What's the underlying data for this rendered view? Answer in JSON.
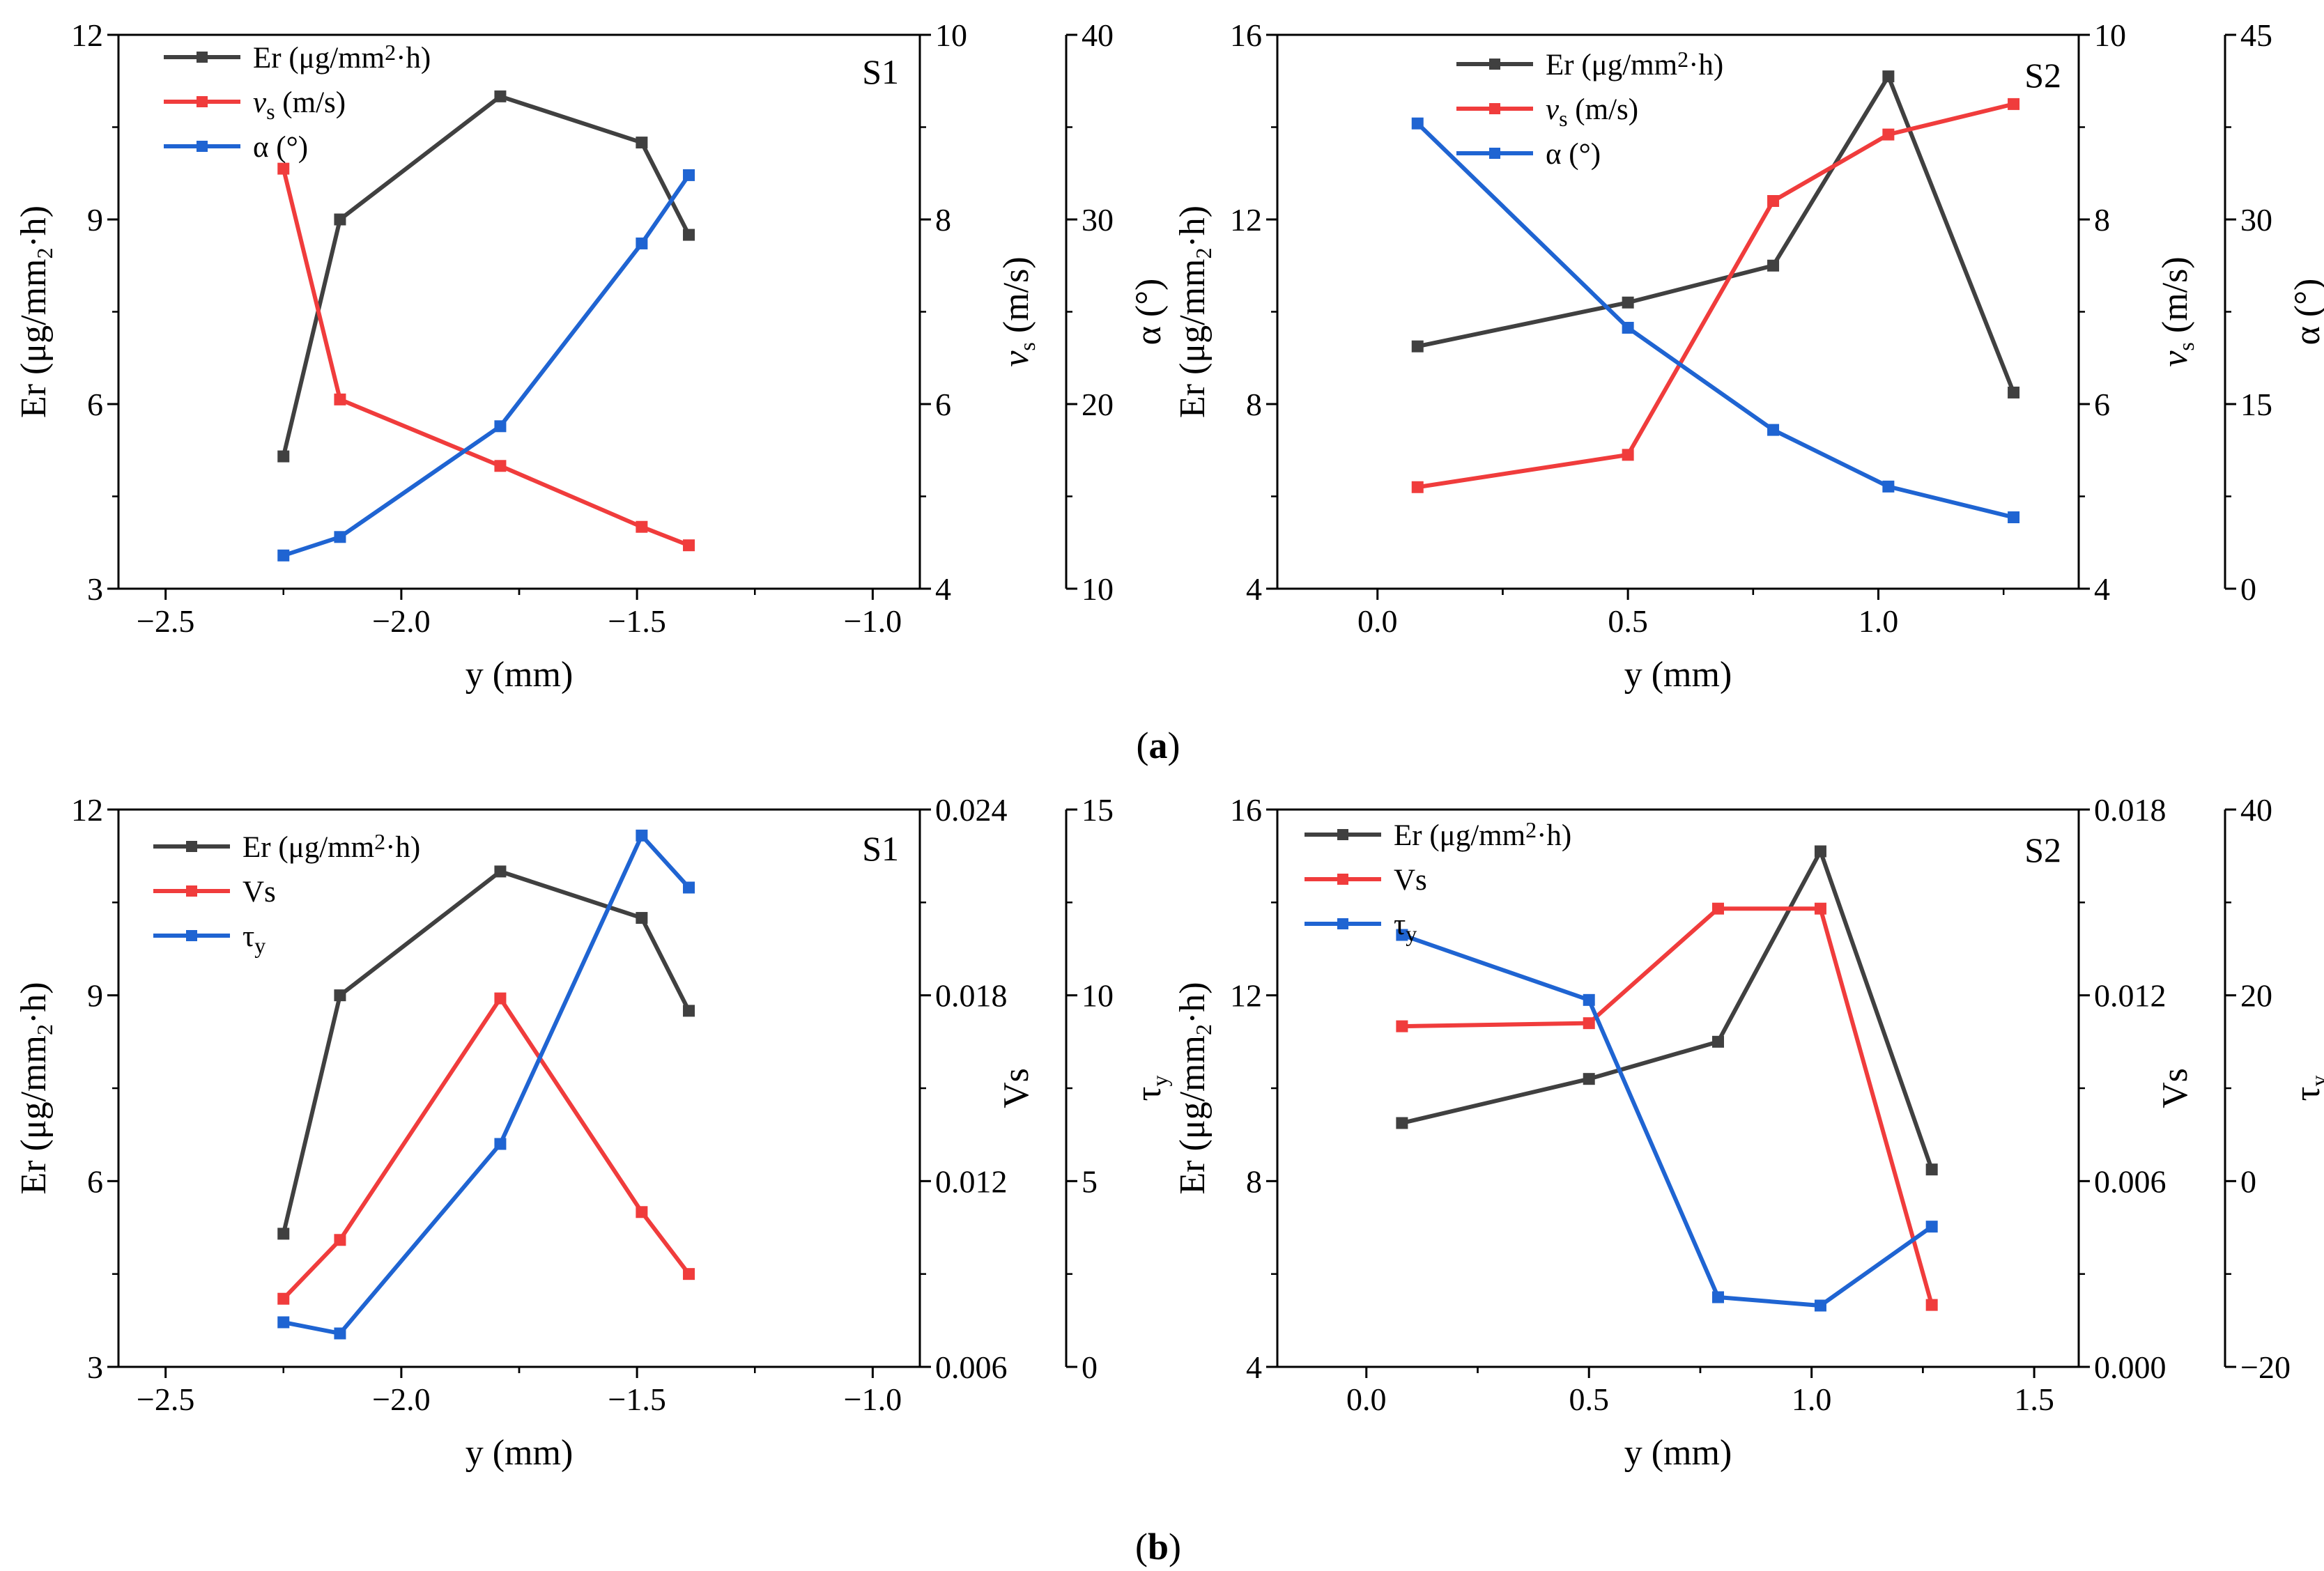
{
  "captions": [
    "(a)",
    "(b)"
  ],
  "colors": {
    "er": "#404040",
    "red": "#f03c3c",
    "blue": "#1f64d2"
  },
  "chart_data": [
    {
      "type": "line",
      "panel": "S1",
      "row": "a",
      "xlabel": "y (mm)",
      "xlim": [
        -2.6,
        -0.9
      ],
      "xticks": [
        -2.5,
        -2.0,
        -1.5,
        -1.0
      ],
      "xtick_labels": [
        "−2.5",
        "−2.0",
        "−1.5",
        "−1.0"
      ],
      "axes": [
        {
          "id": "er",
          "side": "left",
          "label": "Er (μg/mm2·h)",
          "lim": [
            3,
            12
          ],
          "ticks": [
            3,
            6,
            9,
            12
          ],
          "tick_labels": [
            "3",
            "6",
            "9",
            "12"
          ]
        },
        {
          "id": "vs",
          "side": "right1",
          "label": "vs (m/s)",
          "lim": [
            4,
            10
          ],
          "ticks": [
            4,
            6,
            8,
            10
          ],
          "tick_labels": [
            "4",
            "6",
            "8",
            "10"
          ]
        },
        {
          "id": "alpha",
          "side": "right2",
          "label": "α (°)",
          "lim": [
            10,
            40
          ],
          "ticks": [
            10,
            20,
            30,
            40
          ],
          "tick_labels": [
            "10",
            "20",
            "30",
            "40"
          ]
        }
      ],
      "series": [
        {
          "name": "Er (μg/mm2·h)",
          "axis": "er",
          "color": "#404040",
          "x": [
            -2.25,
            -2.13,
            -1.79,
            -1.49,
            -1.39
          ],
          "y": [
            5.15,
            9.0,
            11.0,
            10.25,
            8.75
          ]
        },
        {
          "name": "vs (m/s)",
          "axis": "vs",
          "color": "#f03c3c",
          "x": [
            -2.25,
            -2.13,
            -1.79,
            -1.49,
            -1.39
          ],
          "y": [
            8.55,
            6.05,
            5.33,
            4.67,
            4.47
          ]
        },
        {
          "name": "α (°)",
          "axis": "alpha",
          "color": "#1f64d2",
          "x": [
            -2.25,
            -2.13,
            -1.79,
            -1.49,
            -1.39
          ],
          "y": [
            11.8,
            12.8,
            18.8,
            28.7,
            32.4
          ]
        }
      ]
    },
    {
      "type": "line",
      "panel": "S2",
      "row": "a",
      "xlabel": "y (mm)",
      "xlim": [
        -0.2,
        1.4
      ],
      "xticks": [
        0.0,
        0.5,
        1.0
      ],
      "xtick_labels": [
        "0.0",
        "0.5",
        "1.0"
      ],
      "axes": [
        {
          "id": "er",
          "side": "left",
          "label": "Er (μg/mm2·h)",
          "lim": [
            4,
            16
          ],
          "ticks": [
            4,
            8,
            12,
            16
          ],
          "tick_labels": [
            "4",
            "8",
            "12",
            "16"
          ]
        },
        {
          "id": "vs",
          "side": "right1",
          "label": "vs (m/s)",
          "lim": [
            4,
            10
          ],
          "ticks": [
            4,
            6,
            8,
            10
          ],
          "tick_labels": [
            "4",
            "6",
            "8",
            "10"
          ]
        },
        {
          "id": "alpha",
          "side": "right2",
          "label": "α (°)",
          "lim": [
            0,
            45
          ],
          "ticks": [
            0,
            15,
            30,
            45
          ],
          "tick_labels": [
            "0",
            "15",
            "30",
            "45"
          ]
        }
      ],
      "series": [
        {
          "name": "Er (μg/mm2·h)",
          "axis": "er",
          "color": "#404040",
          "x": [
            0.08,
            0.5,
            0.79,
            1.02,
            1.27
          ],
          "y": [
            9.25,
            10.2,
            11.0,
            15.1,
            8.25
          ]
        },
        {
          "name": "vs (m/s)",
          "axis": "vs",
          "color": "#f03c3c",
          "x": [
            0.08,
            0.5,
            0.79,
            1.02,
            1.27
          ],
          "y": [
            5.1,
            5.45,
            8.2,
            8.92,
            9.25
          ]
        },
        {
          "name": "α (°)",
          "axis": "alpha",
          "color": "#1f64d2",
          "x": [
            0.08,
            0.5,
            0.79,
            1.02,
            1.27
          ],
          "y": [
            37.8,
            21.2,
            12.9,
            8.3,
            5.8
          ]
        }
      ]
    },
    {
      "type": "line",
      "panel": "S1",
      "row": "b",
      "xlabel": "y (mm)",
      "xlim": [
        -2.6,
        -0.9
      ],
      "xticks": [
        -2.5,
        -2.0,
        -1.5,
        -1.0
      ],
      "xtick_labels": [
        "−2.5",
        "−2.0",
        "−1.5",
        "−1.0"
      ],
      "axes": [
        {
          "id": "er",
          "side": "left",
          "label": "Er (μg/mm2·h)",
          "lim": [
            3,
            12
          ],
          "ticks": [
            3,
            6,
            9,
            12
          ],
          "tick_labels": [
            "3",
            "6",
            "9",
            "12"
          ]
        },
        {
          "id": "vs",
          "side": "right1",
          "label": "Vs",
          "lim": [
            0.006,
            0.024
          ],
          "ticks": [
            0.006,
            0.012,
            0.018,
            0.024
          ],
          "tick_labels": [
            "0.006",
            "0.012",
            "0.018",
            "0.024"
          ]
        },
        {
          "id": "tau",
          "side": "right2",
          "label": "τy",
          "lim": [
            0,
            15
          ],
          "ticks": [
            0,
            5,
            10,
            15
          ],
          "tick_labels": [
            "0",
            "5",
            "10",
            "15"
          ]
        }
      ],
      "series": [
        {
          "name": "Er (μg/mm2·h)",
          "axis": "er",
          "color": "#404040",
          "x": [
            -2.25,
            -2.13,
            -1.79,
            -1.49,
            -1.39
          ],
          "y": [
            5.15,
            9.0,
            11.0,
            10.25,
            8.75
          ]
        },
        {
          "name": "Vs",
          "axis": "vs",
          "color": "#f03c3c",
          "x": [
            -2.25,
            -2.13,
            -1.79,
            -1.49,
            -1.39
          ],
          "y": [
            0.0082,
            0.0101,
            0.0179,
            0.011,
            0.009
          ]
        },
        {
          "name": "τy",
          "axis": "tau",
          "color": "#1f64d2",
          "x": [
            -2.25,
            -2.13,
            -1.79,
            -1.49,
            -1.39
          ],
          "y": [
            1.2,
            0.9,
            6.0,
            14.3,
            12.9
          ]
        }
      ]
    },
    {
      "type": "line",
      "panel": "S2",
      "row": "b",
      "xlabel": "y (mm)",
      "xlim": [
        -0.2,
        1.6
      ],
      "xticks": [
        0.0,
        0.5,
        1.0,
        1.5
      ],
      "xtick_labels": [
        "0.0",
        "0.5",
        "1.0",
        "1.5"
      ],
      "axes": [
        {
          "id": "er",
          "side": "left",
          "label": "Er (μg/mm2·h)",
          "lim": [
            4,
            16
          ],
          "ticks": [
            4,
            8,
            12,
            16
          ],
          "tick_labels": [
            "4",
            "8",
            "12",
            "16"
          ]
        },
        {
          "id": "vs",
          "side": "right1",
          "label": "Vs",
          "lim": [
            0,
            0.018
          ],
          "ticks": [
            0,
            0.006,
            0.012,
            0.018
          ],
          "tick_labels": [
            "0.000",
            "0.006",
            "0.012",
            "0.018"
          ]
        },
        {
          "id": "tau",
          "side": "right2",
          "label": "τy",
          "lim": [
            -20,
            40
          ],
          "ticks": [
            -20,
            0,
            20,
            40
          ],
          "tick_labels": [
            "−20",
            "0",
            "20",
            "40"
          ]
        }
      ],
      "series": [
        {
          "name": "Er (μg/mm2·h)",
          "axis": "er",
          "color": "#404040",
          "x": [
            0.08,
            0.5,
            0.79,
            1.02,
            1.27
          ],
          "y": [
            9.25,
            10.2,
            11.0,
            15.1,
            8.25
          ]
        },
        {
          "name": "Vs",
          "axis": "vs",
          "color": "#f03c3c",
          "x": [
            0.08,
            0.5,
            0.79,
            1.02,
            1.27
          ],
          "y": [
            0.011,
            0.0111,
            0.0148,
            0.0148,
            0.002
          ]
        },
        {
          "name": "τy",
          "axis": "tau",
          "color": "#1f64d2",
          "x": [
            0.08,
            0.5,
            0.79,
            1.02,
            1.27
          ],
          "y": [
            26.5,
            19.5,
            -12.5,
            -13.4,
            -4.9
          ]
        }
      ]
    }
  ]
}
